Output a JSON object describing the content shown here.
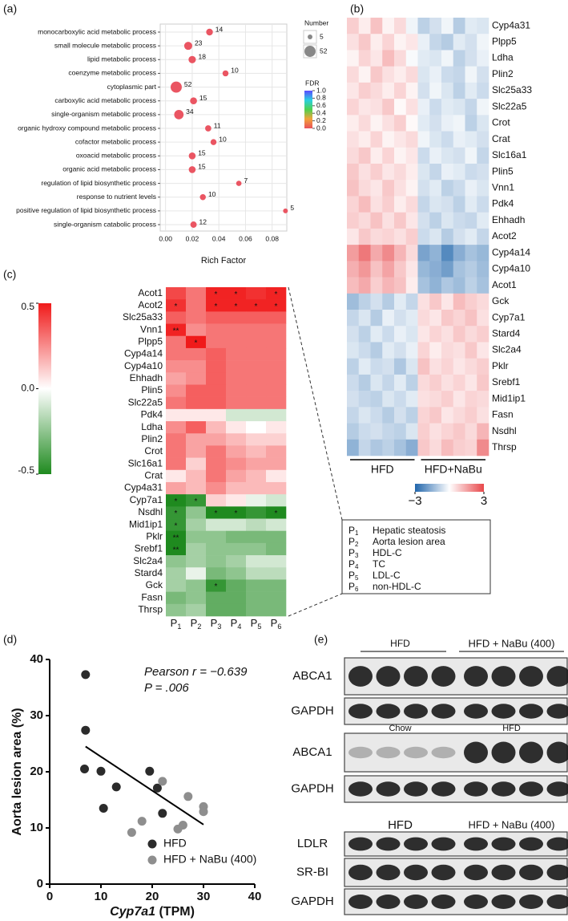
{
  "panel_labels": [
    "(a)",
    "(b)",
    "(c)",
    "(d)",
    "(e)"
  ],
  "chart_data": [
    {
      "type": "bubble",
      "x_label": "Rich Factor",
      "categories": [
        "monocarboxylic acid metabolic process",
        "small molecule metabolic process",
        "lipid metabolic process",
        "coenzyme metabolic process",
        "cytoplasmic part",
        "carboxylic acid metabolic process",
        "single-organism metabolic process",
        "organic hydroxy compound metabolic process",
        "cofactor metabolic process",
        "oxoacid metabolic process",
        "organic acid metabolic process",
        "regulation of lipid biosynthetic process",
        "response to nutrient levels",
        "positive regulation of lipid biosynthetic process",
        "single-organism catabolic process"
      ],
      "values": [
        0.033,
        0.017,
        0.02,
        0.045,
        0.008,
        0.021,
        0.01,
        0.032,
        0.036,
        0.02,
        0.02,
        0.055,
        0.028,
        0.09,
        0.021
      ],
      "size": [
        14,
        23,
        18,
        10,
        52,
        15,
        34,
        11,
        10,
        15,
        15,
        7,
        10,
        5,
        12
      ],
      "color": "#ea5562",
      "xlim": [
        -0.004,
        0.091
      ],
      "xticks": [
        {
          "value": 0,
          "label": "0.00"
        },
        0.02,
        0.04,
        0.06,
        0.08
      ],
      "grid": true,
      "size_legend": {
        "title": "Number",
        "values": [
          5,
          52
        ]
      },
      "color_legend": {
        "title": "FDR",
        "lim": [
          0,
          1
        ],
        "ticks": [
          {
            "value": 1,
            "label": "1.0"
          },
          0.8,
          0.6,
          0.4,
          0.2,
          {
            "value": 0,
            "label": "0.0"
          }
        ],
        "colors": [
          "#e8505b",
          "#f2a33a",
          "#4fd14f",
          "#2ad0e0",
          "#5a4bff"
        ]
      }
    },
    {
      "type": "heatmap",
      "rows": [
        "Cyp4a31",
        "Plpp5",
        "Ldha",
        "Plin2",
        "Slc25a33",
        "Slc22a5",
        "Crot",
        "Crat",
        "Slc16a1",
        "Plin5",
        "Vnn1",
        "Pdk4",
        "Ehhadh",
        "Acot2",
        "Cyp4a14",
        "Cyp4a10",
        "Acot1",
        "Gck",
        "Cyp7a1",
        "Stard4",
        "Slc2a4",
        "Pklr",
        "Srebf1",
        "Mid1ip1",
        "Fasn",
        "Nsdhl",
        "Thrsp"
      ],
      "groups": [
        "HFD",
        "HFD+NaBu"
      ],
      "values": [
        [
          0.8,
          0.3,
          1.0,
          0.2,
          0.6,
          -0.2,
          -0.9,
          -0.6,
          -0.2,
          -1.0,
          -0.4,
          -0.5
        ],
        [
          0.5,
          0.9,
          0.3,
          0.7,
          0.2,
          0.4,
          -0.3,
          -0.8,
          -1.0,
          -0.4,
          -0.6,
          -0.2
        ],
        [
          0.2,
          0.7,
          0.4,
          1.1,
          0.6,
          -0.1,
          -0.4,
          -0.5,
          -0.2,
          -0.9,
          -0.6,
          -0.3
        ],
        [
          0.6,
          0.2,
          0.9,
          0.5,
          0.3,
          0.6,
          -0.5,
          -0.3,
          -0.7,
          -0.8,
          -0.2,
          -0.6
        ],
        [
          0.4,
          0.8,
          0.6,
          0.3,
          0.7,
          0.2,
          -0.6,
          -0.2,
          -0.5,
          -0.9,
          -0.4,
          -0.7
        ],
        [
          0.7,
          0.4,
          0.5,
          0.9,
          0.1,
          0.5,
          -0.3,
          -0.7,
          -0.4,
          -0.5,
          -0.8,
          -0.2
        ],
        [
          0.3,
          0.6,
          0.2,
          0.5,
          0.8,
          0.1,
          -0.4,
          -0.6,
          -0.3,
          -0.2,
          -0.9,
          -0.5
        ],
        [
          0.5,
          0.3,
          0.7,
          0.2,
          0.4,
          0.6,
          -0.2,
          -0.5,
          -0.7,
          -0.3,
          -0.4,
          -0.6
        ],
        [
          0.6,
          0.9,
          0.3,
          0.7,
          0.2,
          0.4,
          -0.7,
          -0.3,
          -0.5,
          -0.6,
          -0.2,
          -0.8
        ],
        [
          0.9,
          0.5,
          0.8,
          0.4,
          0.6,
          0.3,
          -0.5,
          -0.8,
          -0.3,
          -0.4,
          -0.7,
          -0.6
        ],
        [
          1.0,
          0.6,
          0.4,
          0.9,
          0.5,
          0.2,
          -0.6,
          -0.4,
          -0.9,
          -0.7,
          -0.3,
          -0.5
        ],
        [
          0.7,
          1.1,
          0.5,
          0.8,
          0.3,
          0.6,
          -0.8,
          -0.5,
          -0.6,
          -0.9,
          -0.4,
          -0.7
        ],
        [
          0.8,
          0.6,
          1.0,
          0.5,
          0.9,
          0.4,
          -0.6,
          -0.9,
          -0.5,
          -0.7,
          -0.8,
          -0.4
        ],
        [
          0.4,
          0.9,
          0.6,
          0.7,
          0.5,
          0.8,
          -0.7,
          -0.5,
          -1.0,
          -0.6,
          -0.4,
          -0.8
        ],
        [
          1.6,
          2.2,
          1.4,
          1.9,
          1.2,
          0.6,
          -1.8,
          -1.5,
          -2.3,
          -1.6,
          -1.2,
          -1.4
        ],
        [
          1.3,
          1.7,
          1.0,
          1.5,
          0.9,
          0.4,
          -1.4,
          -1.6,
          -1.9,
          -1.2,
          -1.0,
          -1.3
        ],
        [
          1.1,
          1.4,
          0.8,
          1.2,
          1.0,
          0.3,
          -1.2,
          -1.5,
          -1.1,
          -1.3,
          -0.9,
          -1.2
        ],
        [
          -1.3,
          -0.9,
          -0.6,
          -1.0,
          -0.4,
          -0.8,
          0.5,
          0.9,
          0.4,
          1.1,
          0.8,
          0.6
        ],
        [
          -0.8,
          -0.5,
          -1.0,
          -0.3,
          -0.6,
          -0.4,
          0.6,
          0.4,
          0.9,
          0.7,
          1.0,
          0.5
        ],
        [
          -0.6,
          -0.9,
          -0.4,
          -0.7,
          -0.3,
          -0.5,
          0.4,
          0.7,
          0.5,
          0.9,
          0.6,
          0.8
        ],
        [
          -0.5,
          -0.7,
          -1.0,
          -0.4,
          -0.6,
          -0.3,
          0.7,
          0.3,
          0.6,
          0.5,
          0.9,
          0.4
        ],
        [
          -0.9,
          -0.4,
          -0.7,
          -0.6,
          -1.1,
          -0.5,
          1.0,
          0.5,
          0.7,
          0.4,
          0.6,
          0.8
        ],
        [
          -0.7,
          -1.0,
          -0.5,
          -0.8,
          -0.4,
          -0.9,
          0.6,
          0.8,
          0.5,
          0.7,
          0.4,
          0.9
        ],
        [
          -0.6,
          -0.8,
          -0.9,
          -0.5,
          -0.7,
          -0.4,
          0.5,
          0.6,
          0.8,
          0.4,
          0.7,
          0.6
        ],
        [
          -0.8,
          -0.5,
          -0.7,
          -1.0,
          -0.6,
          -0.9,
          0.7,
          0.9,
          0.4,
          0.6,
          0.8,
          0.5
        ],
        [
          -1.0,
          -0.7,
          -0.6,
          -0.8,
          -0.9,
          -0.5,
          0.8,
          0.5,
          0.7,
          0.9,
          0.6,
          1.2
        ],
        [
          -1.5,
          -0.8,
          -1.1,
          -0.9,
          -1.2,
          -1.6,
          0.9,
          0.6,
          1.1,
          0.8,
          0.7,
          1.9
        ]
      ],
      "colorbar": {
        "lim": [
          -3,
          3
        ],
        "ticks": [
          {
            "value": -3,
            "label": "−3"
          },
          3
        ],
        "colors": [
          "#2166ac",
          "#ffffff",
          "#e8474a"
        ]
      }
    },
    {
      "type": "heatmap",
      "rows": [
        "Acot1",
        "Acot2",
        "Slc25a33",
        "Vnn1",
        "Plpp5",
        "Cyp4a14",
        "Cyp4a10",
        "Ehhadh",
        "Plin5",
        "Slc22a5",
        "Pdk4",
        "Ldha",
        "Plin2",
        "Crot",
        "Slc16a1",
        "Crat",
        "Cyp4a31",
        "Cyp7a1",
        "Nsdhl",
        "Mid1ip1",
        "Pklr",
        "Srebf1",
        "Slc2a4",
        "Stard4",
        "Gck",
        "Fasn",
        "Thrsp"
      ],
      "columns": [
        [
          "P",
          "1"
        ],
        [
          "P",
          "2"
        ],
        [
          "P",
          "3"
        ],
        [
          "P",
          "4"
        ],
        [
          "P",
          "5"
        ],
        [
          "P",
          "6"
        ]
      ],
      "values": [
        [
          0.4,
          0.3,
          0.48,
          0.48,
          0.45,
          0.48
        ],
        [
          0.45,
          0.3,
          0.48,
          0.48,
          0.48,
          0.48
        ],
        [
          0.35,
          0.3,
          0.35,
          0.35,
          0.35,
          0.35
        ],
        [
          0.48,
          0.25,
          0.3,
          0.3,
          0.3,
          0.3
        ],
        [
          0.3,
          0.5,
          0.3,
          0.3,
          0.3,
          0.3
        ],
        [
          0.3,
          0.3,
          0.35,
          0.3,
          0.3,
          0.3
        ],
        [
          0.25,
          0.25,
          0.35,
          0.3,
          0.3,
          0.3
        ],
        [
          0.2,
          0.25,
          0.35,
          0.3,
          0.3,
          0.3
        ],
        [
          0.25,
          0.35,
          0.35,
          0.3,
          0.3,
          0.3
        ],
        [
          0.3,
          0.35,
          0.35,
          0.3,
          0.3,
          0.3
        ],
        [
          0.05,
          0.05,
          0.05,
          -0.1,
          -0.1,
          -0.1
        ],
        [
          0.25,
          0.35,
          0.15,
          0.05,
          0,
          0.05
        ],
        [
          0.3,
          0.2,
          0.2,
          0.15,
          0.1,
          0.1
        ],
        [
          0.3,
          0.2,
          0.3,
          0.2,
          0.15,
          0.2
        ],
        [
          0.3,
          0.1,
          0.3,
          0.25,
          0.2,
          0.2
        ],
        [
          0.05,
          0.15,
          0.3,
          0.2,
          0.15,
          0.05
        ],
        [
          0.2,
          0.15,
          0.25,
          0.15,
          0.15,
          0.15
        ],
        [
          -0.5,
          -0.45,
          0.1,
          0.05,
          -0.05,
          -0.1
        ],
        [
          -0.45,
          -0.25,
          -0.5,
          -0.5,
          -0.45,
          -0.5
        ],
        [
          -0.45,
          -0.2,
          -0.1,
          -0.1,
          -0.15,
          -0.1
        ],
        [
          -0.5,
          -0.25,
          -0.25,
          -0.3,
          -0.3,
          -0.3
        ],
        [
          -0.5,
          -0.2,
          -0.25,
          -0.25,
          -0.25,
          -0.3
        ],
        [
          -0.25,
          -0.2,
          -0.25,
          -0.2,
          -0.1,
          -0.1
        ],
        [
          -0.2,
          -0.05,
          -0.3,
          -0.25,
          -0.15,
          -0.15
        ],
        [
          -0.2,
          -0.25,
          -0.45,
          -0.35,
          -0.3,
          -0.3
        ],
        [
          -0.3,
          -0.25,
          -0.35,
          -0.35,
          -0.3,
          -0.3
        ],
        [
          -0.25,
          -0.2,
          -0.35,
          -0.35,
          -0.3,
          -0.3
        ]
      ],
      "value_labels": [
        [
          null,
          null,
          "*",
          "*",
          null,
          "*"
        ],
        [
          "*",
          null,
          "*",
          "*",
          "*",
          "*"
        ],
        [
          null,
          null,
          null,
          null,
          null,
          null
        ],
        [
          "**",
          null,
          null,
          null,
          null,
          null
        ],
        [
          null,
          "*",
          null,
          null,
          null,
          null
        ],
        [
          null,
          null,
          null,
          null,
          null,
          null
        ],
        [
          null,
          null,
          null,
          null,
          null,
          null
        ],
        [
          null,
          null,
          null,
          null,
          null,
          null
        ],
        [
          null,
          null,
          null,
          null,
          null,
          null
        ],
        [
          null,
          null,
          null,
          null,
          null,
          null
        ],
        [
          null,
          null,
          null,
          null,
          null,
          null
        ],
        [
          null,
          null,
          null,
          null,
          null,
          null
        ],
        [
          null,
          null,
          null,
          null,
          null,
          null
        ],
        [
          null,
          null,
          null,
          null,
          null,
          null
        ],
        [
          null,
          null,
          null,
          null,
          null,
          null
        ],
        [
          null,
          null,
          null,
          null,
          null,
          null
        ],
        [
          null,
          null,
          null,
          null,
          null,
          null
        ],
        [
          "*",
          "*",
          null,
          null,
          null,
          null
        ],
        [
          "*",
          null,
          "*",
          "*",
          null,
          "*"
        ],
        [
          "*",
          null,
          null,
          null,
          null,
          null
        ],
        [
          "**",
          null,
          null,
          null,
          null,
          null
        ],
        [
          "**",
          null,
          null,
          null,
          null,
          null
        ],
        [
          null,
          null,
          null,
          null,
          null,
          null
        ],
        [
          null,
          null,
          null,
          null,
          null,
          null
        ],
        [
          null,
          null,
          "*",
          null,
          null,
          null
        ],
        [
          null,
          null,
          null,
          null,
          null,
          null
        ],
        [
          null,
          null,
          null,
          null,
          null,
          null
        ]
      ],
      "colorbar": {
        "lim": [
          -0.5,
          0.5
        ],
        "ticks": [
          0.5,
          {
            "value": 0,
            "label": "0.0"
          },
          -0.5
        ],
        "colors": [
          "#1f8a1f",
          "#ffffff",
          "#f01a1a"
        ]
      },
      "legend": [
        {
          "symbol": [
            "P",
            "1"
          ],
          "label": "Hepatic steatosis"
        },
        {
          "symbol": [
            "P",
            "2"
          ],
          "label": "Aorta lesion area"
        },
        {
          "symbol": [
            "P",
            "3"
          ],
          "label": "HDL-C"
        },
        {
          "symbol": [
            "P",
            "4"
          ],
          "label": "TC"
        },
        {
          "symbol": [
            "P",
            "5"
          ],
          "label": "LDL-C"
        },
        {
          "symbol": [
            "P",
            "6"
          ],
          "label": "non-HDL-C"
        }
      ]
    },
    {
      "type": "scatter",
      "x_label": {
        "gene": "Cyp7a1",
        "unit": "(TPM)"
      },
      "y_label": "Aorta lesion area (%)",
      "xlim": [
        0,
        40
      ],
      "xticks": [
        0,
        10,
        20,
        30,
        40
      ],
      "ylim": [
        0,
        40
      ],
      "yticks": [
        0,
        10,
        20,
        30,
        40
      ],
      "series": [
        {
          "name": "HFD",
          "color": "#2b2b2b",
          "x": [
            7,
            7,
            6.8,
            10,
            10.5,
            13,
            19.5,
            21,
            22
          ],
          "y": [
            37.3,
            27.4,
            20.5,
            20.1,
            13.5,
            17.3,
            20.1,
            17.1,
            12.6
          ]
        },
        {
          "name": "HFD + NaBu (400)",
          "color": "#8e8e8e",
          "x": [
            16,
            18,
            22,
            25,
            26,
            27,
            30,
            30
          ],
          "y": [
            9.2,
            11.2,
            18.3,
            9.8,
            10.5,
            15.6,
            13.8,
            12.9
          ]
        }
      ],
      "fit": {
        "x": [
          7,
          30
        ],
        "y": [
          24.5,
          10.6
        ]
      },
      "annotations": [
        "Pearson r = −0.639",
        "P = .006"
      ]
    }
  ],
  "blots": [
    {
      "left": "HFD",
      "right": "HFD + NaBu (400)",
      "rows": [
        "ABCA1",
        "GAPDH"
      ]
    },
    {
      "left": "Chow",
      "right": "HFD",
      "rows": [
        "ABCA1",
        "GAPDH"
      ]
    },
    {
      "left": "HFD",
      "right": "HFD + NaBu (400)",
      "rows": [
        "LDLR",
        "SR-BI",
        "GAPDH"
      ]
    }
  ]
}
